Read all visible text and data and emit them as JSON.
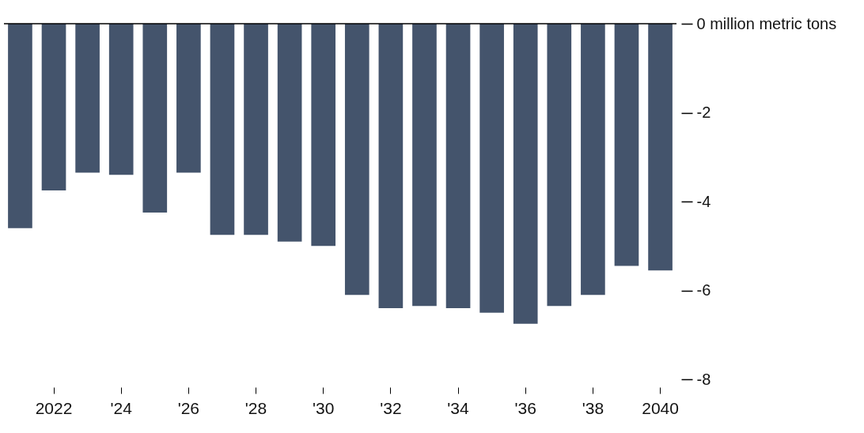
{
  "chart_data": {
    "type": "bar",
    "categories": [
      null,
      "2022",
      null,
      "'24",
      null,
      "'26",
      null,
      "'28",
      null,
      "'30",
      null,
      "'32",
      null,
      "'34",
      null,
      "'36",
      null,
      "'38",
      null,
      "2040"
    ],
    "values": [
      -4.6,
      -3.75,
      -3.35,
      -3.4,
      -4.25,
      -3.35,
      -4.75,
      -4.75,
      -4.9,
      -5.0,
      -6.1,
      -6.4,
      -6.35,
      -6.4,
      -6.5,
      -6.75,
      -6.35,
      -6.1,
      -5.45,
      -5.55
    ],
    "color": "#44546c",
    "ylim": [
      -8,
      0
    ],
    "ref_lines": [
      {
        "axis": "y",
        "value": 0,
        "color": "#000000"
      }
    ],
    "yticks": [
      {
        "value": 0,
        "label": "0 million metric tons"
      },
      -2,
      -4,
      -6,
      -8
    ]
  }
}
